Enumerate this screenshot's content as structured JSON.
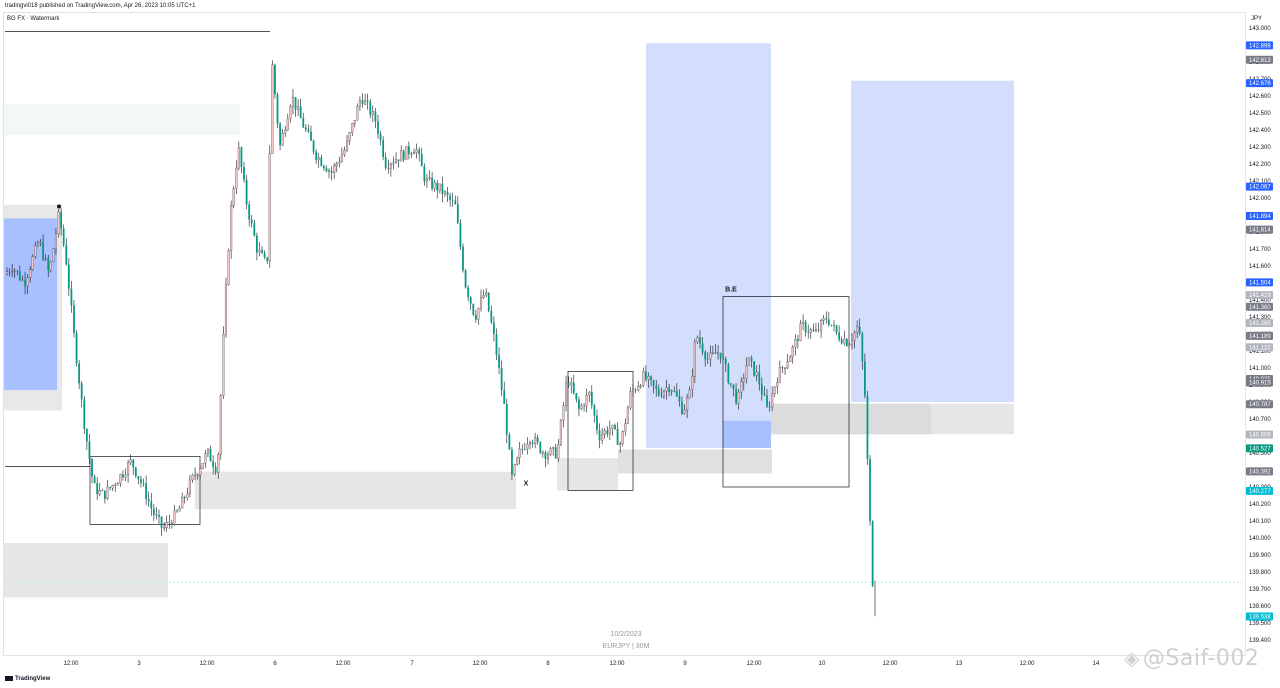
{
  "header": {
    "published_text": "tradingvi018 published on TradingView.com, Apr 26, 2023 10:05 UTC+1",
    "symbol_label": "BG FX · Watermark",
    "currency": "JPY"
  },
  "watermark": {
    "date": "10/2/2023",
    "pair": "EURJPY | 30M"
  },
  "branding": {
    "tv_logo_text": "TradingView",
    "signature_text": "@Saif-002"
  },
  "chart_data": {
    "type": "candlestick",
    "symbol": "EURJPY",
    "timeframe": "30M",
    "ylim": [
      139.4,
      143.0
    ],
    "y_ticks": [
      "143.000",
      "142.900",
      "142.800",
      "142.700",
      "142.600",
      "142.500",
      "142.400",
      "142.300",
      "142.200",
      "142.100",
      "142.000",
      "141.900",
      "141.800",
      "141.700",
      "141.600",
      "141.500",
      "141.400",
      "141.300",
      "141.200",
      "141.100",
      "141.000",
      "140.900",
      "140.800",
      "140.700",
      "140.600",
      "140.500",
      "140.400",
      "140.300",
      "140.200",
      "140.100",
      "140.000",
      "139.900",
      "139.800",
      "139.700",
      "139.600",
      "139.500",
      "139.400"
    ],
    "x_ticks": [
      "12:00",
      "3",
      "12:00",
      "6",
      "12:00",
      "7",
      "12:00",
      "8",
      "12:00",
      "9",
      "12:00",
      "10",
      "12:00",
      "13",
      "12:00",
      "14"
    ],
    "price_tags": [
      {
        "value": "142.898",
        "color": "#2962ff"
      },
      {
        "value": "142.813",
        "color": "#787b86"
      },
      {
        "value": "142.676",
        "color": "#2962ff"
      },
      {
        "value": "142.067",
        "color": "#2962ff"
      },
      {
        "value": "141.894",
        "color": "#2962ff"
      },
      {
        "value": "141.814",
        "color": "#787b86"
      },
      {
        "value": "141.504",
        "color": "#2962ff"
      },
      {
        "value": "141.429",
        "color": "#b2b5be"
      },
      {
        "value": "141.360",
        "color": "#787b86"
      },
      {
        "value": "141.265",
        "color": "#b2b5be"
      },
      {
        "value": "141.189",
        "color": "#787b86"
      },
      {
        "value": "141.122",
        "color": "#b2b5be"
      },
      {
        "value": "140.935",
        "color": "#787b86"
      },
      {
        "value": "140.915",
        "color": "#787b86"
      },
      {
        "value": "140.787",
        "color": "#787b86"
      },
      {
        "value": "140.609",
        "color": "#b2b5be"
      },
      {
        "value": "140.527",
        "color": "#089981"
      },
      {
        "value": "140.392",
        "color": "#787b86"
      },
      {
        "value": "140.277",
        "color": "#00bcd4"
      },
      {
        "value": "139.538",
        "color": "#00bcd4"
      }
    ],
    "annotations": [
      {
        "text": "B.E",
        "price": 141.42
      },
      {
        "text": "X",
        "price": 140.28
      }
    ],
    "candle_colors": {
      "up": "#f2c6c4",
      "down": "#089981",
      "wick": "#131722"
    },
    "path": [
      {
        "t": 0,
        "p": 141.55
      },
      {
        "t": 8,
        "p": 141.6
      },
      {
        "t": 20,
        "p": 141.5
      },
      {
        "t": 35,
        "p": 141.75
      },
      {
        "t": 45,
        "p": 141.55
      },
      {
        "t": 55,
        "p": 141.9
      },
      {
        "t": 62,
        "p": 141.65
      },
      {
        "t": 70,
        "p": 141.2
      },
      {
        "t": 80,
        "p": 140.7
      },
      {
        "t": 90,
        "p": 140.3
      },
      {
        "t": 100,
        "p": 140.25
      },
      {
        "t": 115,
        "p": 140.35
      },
      {
        "t": 128,
        "p": 140.45
      },
      {
        "t": 140,
        "p": 140.3
      },
      {
        "t": 150,
        "p": 140.15
      },
      {
        "t": 160,
        "p": 140.05
      },
      {
        "t": 175,
        "p": 140.15
      },
      {
        "t": 190,
        "p": 140.35
      },
      {
        "t": 205,
        "p": 140.5
      },
      {
        "t": 215,
        "p": 140.4
      },
      {
        "t": 222,
        "p": 141.3
      },
      {
        "t": 228,
        "p": 141.9
      },
      {
        "t": 236,
        "p": 142.3
      },
      {
        "t": 245,
        "p": 141.95
      },
      {
        "t": 255,
        "p": 141.7
      },
      {
        "t": 265,
        "p": 141.6
      },
      {
        "t": 270,
        "p": 142.8
      },
      {
        "t": 278,
        "p": 142.3
      },
      {
        "t": 290,
        "p": 142.6
      },
      {
        "t": 300,
        "p": 142.45
      },
      {
        "t": 315,
        "p": 142.25
      },
      {
        "t": 330,
        "p": 142.15
      },
      {
        "t": 345,
        "p": 142.3
      },
      {
        "t": 360,
        "p": 142.6
      },
      {
        "t": 375,
        "p": 142.45
      },
      {
        "t": 385,
        "p": 142.2
      },
      {
        "t": 400,
        "p": 142.25
      },
      {
        "t": 415,
        "p": 142.3
      },
      {
        "t": 425,
        "p": 142.1
      },
      {
        "t": 440,
        "p": 142.05
      },
      {
        "t": 455,
        "p": 141.95
      },
      {
        "t": 465,
        "p": 141.5
      },
      {
        "t": 475,
        "p": 141.3
      },
      {
        "t": 485,
        "p": 141.45
      },
      {
        "t": 495,
        "p": 141.15
      },
      {
        "t": 505,
        "p": 140.75
      },
      {
        "t": 512,
        "p": 140.35
      },
      {
        "t": 520,
        "p": 140.5
      },
      {
        "t": 530,
        "p": 140.6
      },
      {
        "t": 545,
        "p": 140.5
      },
      {
        "t": 558,
        "p": 140.5
      },
      {
        "t": 568,
        "p": 140.95
      },
      {
        "t": 580,
        "p": 140.75
      },
      {
        "t": 590,
        "p": 140.85
      },
      {
        "t": 600,
        "p": 140.6
      },
      {
        "t": 612,
        "p": 140.65
      },
      {
        "t": 622,
        "p": 140.55
      },
      {
        "t": 632,
        "p": 140.85
      },
      {
        "t": 645,
        "p": 140.95
      },
      {
        "t": 660,
        "p": 140.85
      },
      {
        "t": 672,
        "p": 140.9
      },
      {
        "t": 685,
        "p": 140.75
      },
      {
        "t": 692,
        "p": 140.85
      },
      {
        "t": 698,
        "p": 141.2
      },
      {
        "t": 710,
        "p": 141.05
      },
      {
        "t": 722,
        "p": 141.1
      },
      {
        "t": 730,
        "p": 140.95
      },
      {
        "t": 740,
        "p": 140.8
      },
      {
        "t": 750,
        "p": 141.05
      },
      {
        "t": 760,
        "p": 140.95
      },
      {
        "t": 770,
        "p": 140.75
      },
      {
        "t": 780,
        "p": 140.95
      },
      {
        "t": 795,
        "p": 141.1
      },
      {
        "t": 805,
        "p": 141.25
      },
      {
        "t": 818,
        "p": 141.2
      },
      {
        "t": 830,
        "p": 141.3
      },
      {
        "t": 840,
        "p": 141.2
      },
      {
        "t": 852,
        "p": 141.15
      },
      {
        "t": 862,
        "p": 141.25
      },
      {
        "t": 868,
        "p": 140.9
      },
      {
        "t": 872,
        "p": 140.3
      },
      {
        "t": 876,
        "p": 139.75
      }
    ]
  }
}
